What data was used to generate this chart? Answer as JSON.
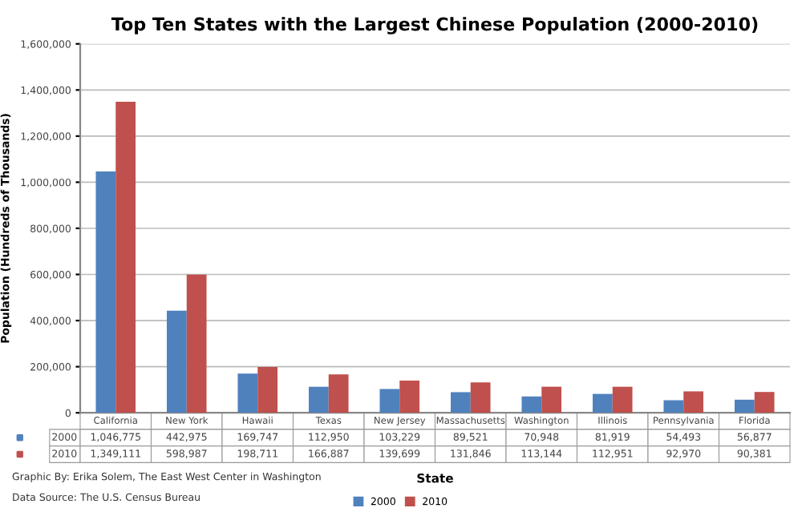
{
  "chart_data": {
    "type": "bar",
    "title": "Top Ten States with the Largest Chinese Population (2000-2010)",
    "xlabel": "State",
    "ylabel": "Population (Hundreds of Thousands)",
    "categories": [
      "California",
      "New York",
      "Hawaii",
      "Texas",
      "New Jersey",
      "Massachusetts",
      "Washington",
      "Illinois",
      "Pennsylvania",
      "Florida"
    ],
    "series": [
      {
        "name": "2000",
        "color": "#4f81bd",
        "values": [
          1046775,
          442975,
          169747,
          112950,
          103229,
          89521,
          70948,
          81919,
          54493,
          56877
        ],
        "value_labels": [
          "1,046,775",
          "442,975",
          "169,747",
          "112,950",
          "103,229",
          "89,521",
          "70,948",
          "81,919",
          "54,493",
          "56,877"
        ]
      },
      {
        "name": "2010",
        "color": "#c0504d",
        "values": [
          1349111,
          598987,
          198711,
          166887,
          139699,
          131846,
          113144,
          112951,
          92970,
          90381
        ],
        "value_labels": [
          "1,349,111",
          "598,987",
          "198,711",
          "166,887",
          "139,699",
          "131,846",
          "113,144",
          "112,951",
          "92,970",
          "90,381"
        ]
      }
    ],
    "ylim": [
      0,
      1600000
    ],
    "yticks": [
      0,
      {
        "value": 200000,
        "label": "200,000"
      },
      {
        "value": 400000,
        "label": "400,000"
      },
      {
        "value": 600000,
        "label": "600,000"
      },
      {
        "value": 800000,
        "label": "800,000"
      },
      {
        "value": 1000000,
        "label": "1,000,000"
      },
      {
        "value": 1200000,
        "label": "1,200,000"
      },
      {
        "value": 1400000,
        "label": "1,400,000"
      },
      {
        "value": 1600000,
        "label": "1,600,000"
      }
    ],
    "grid": "y",
    "legend": "bottom",
    "annotations": [
      "Graphic By: Erika Solem, The East West Center in Washington",
      "Data Source: The U.S. Census Bureau"
    ]
  }
}
